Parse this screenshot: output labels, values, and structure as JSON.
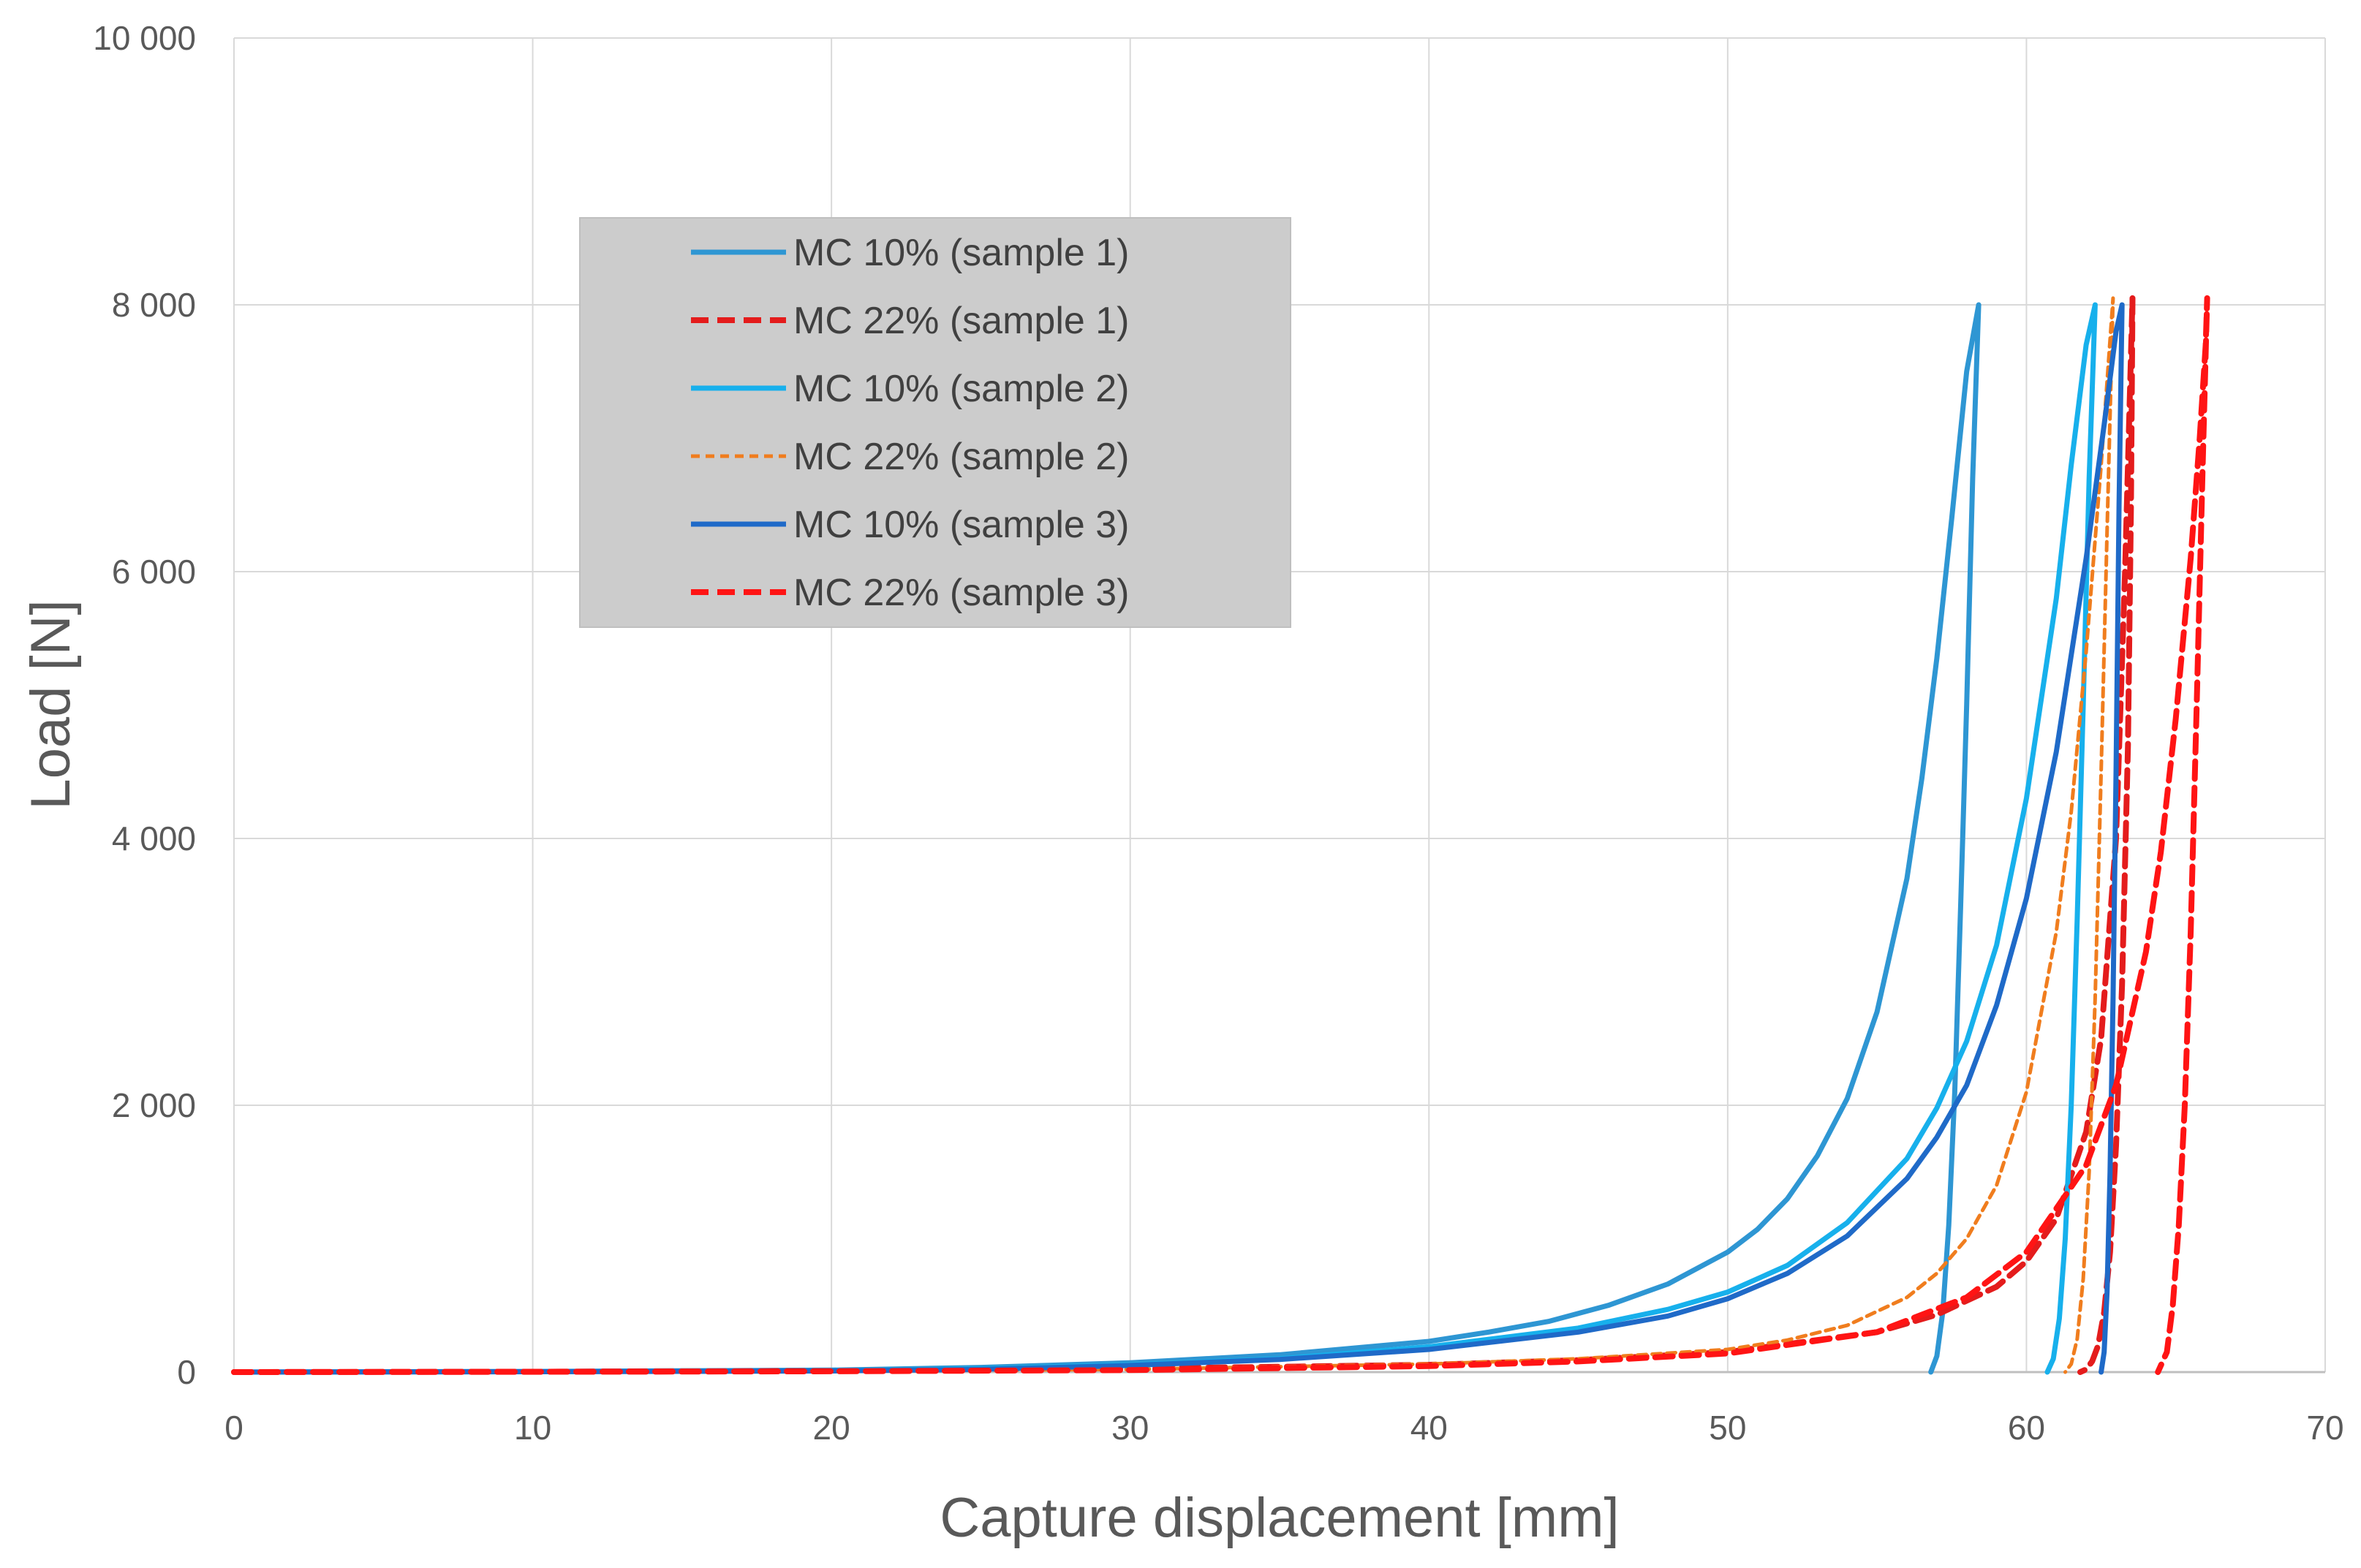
{
  "chart_data": {
    "type": "line",
    "title": "",
    "xlabel": "Capture displacement [mm]",
    "ylabel": "Load [N]",
    "xlim": [
      0,
      70
    ],
    "ylim": [
      0,
      10000
    ],
    "x_ticks": [
      0,
      10,
      20,
      30,
      40,
      50,
      60,
      70
    ],
    "x_tick_labels": [
      "0",
      "10",
      "20",
      "30",
      "40",
      "50",
      "60",
      "70"
    ],
    "y_ticks": [
      0,
      2000,
      4000,
      6000,
      8000,
      10000
    ],
    "y_tick_labels": [
      "0",
      "2 000",
      "4 000",
      "6 000",
      "8 000",
      "10 000"
    ],
    "grid": true,
    "legend_position": "upper-left-inside",
    "series": [
      {
        "name": "MC 10% (sample 1)",
        "color": "#2e96d3",
        "dash": "solid",
        "x": [
          0,
          10,
          20,
          25,
          30,
          35,
          40,
          42,
          44,
          46,
          48,
          50,
          51,
          52,
          53,
          54,
          55,
          56,
          56.5,
          57,
          57.5,
          58,
          58.4,
          58.2,
          58.0,
          57.8,
          57.6,
          57.4,
          57.2,
          57.0,
          56.8
        ],
        "y": [
          0,
          5,
          15,
          35,
          70,
          130,
          230,
          300,
          380,
          500,
          660,
          900,
          1070,
          1300,
          1620,
          2050,
          2700,
          3700,
          4450,
          5350,
          6400,
          7500,
          8000,
          6700,
          5000,
          3500,
          2100,
          1100,
          450,
          120,
          0
        ]
      },
      {
        "name": "MC 22% (sample 1)",
        "color": "#e41c1c",
        "dash": "long",
        "x": [
          0,
          10,
          20,
          30,
          40,
          45,
          50,
          55,
          57,
          59,
          60,
          61,
          62,
          62.5,
          63,
          63.3,
          63.55,
          63.5,
          63.4,
          63.2,
          63.0,
          62.8,
          62.6,
          62.4,
          62.2,
          62.0,
          61.8
        ],
        "y": [
          0,
          3,
          8,
          25,
          55,
          90,
          150,
          300,
          430,
          640,
          830,
          1150,
          1800,
          2500,
          4000,
          6000,
          8050,
          6500,
          4700,
          2900,
          1700,
          900,
          450,
          200,
          80,
          20,
          0
        ]
      },
      {
        "name": "MC 10% (sample 2)",
        "color": "#17b0ec",
        "dash": "solid",
        "x": [
          0,
          10,
          20,
          25,
          30,
          35,
          40,
          45,
          48,
          50,
          52,
          54,
          56,
          57,
          58,
          59,
          60,
          61,
          61.5,
          62,
          62.3,
          62.1,
          61.9,
          61.7,
          61.5,
          61.3,
          61.1,
          60.9,
          60.7
        ],
        "y": [
          0,
          3,
          10,
          25,
          55,
          100,
          190,
          330,
          470,
          600,
          800,
          1120,
          1600,
          1980,
          2480,
          3200,
          4300,
          5800,
          6800,
          7700,
          8000,
          6700,
          5000,
          3400,
          2000,
          1000,
          400,
          100,
          0
        ]
      },
      {
        "name": "MC 22% (sample 2)",
        "color": "#f07d1e",
        "dash": "short",
        "x": [
          0,
          10,
          20,
          30,
          40,
          45,
          50,
          52,
          54,
          56,
          57,
          58,
          59,
          60,
          61,
          61.5,
          62,
          62.5,
          62.9,
          62.7,
          62.5,
          62.3,
          62.1,
          61.9,
          61.7,
          61.5,
          61.3
        ],
        "y": [
          0,
          2,
          8,
          20,
          60,
          100,
          170,
          240,
          350,
          560,
          740,
          1000,
          1400,
          2100,
          3300,
          4200,
          5400,
          6800,
          8050,
          6300,
          4500,
          2800,
          1500,
          700,
          250,
          60,
          0
        ]
      },
      {
        "name": "MC 10% (sample 3)",
        "color": "#1f6ac8",
        "dash": "solid",
        "x": [
          0,
          10,
          20,
          25,
          30,
          35,
          40,
          45,
          48,
          50,
          52,
          54,
          56,
          57,
          58,
          59,
          60,
          61,
          62,
          62.6,
          63.0,
          63.2,
          63.1,
          63.0,
          62.9,
          62.8,
          62.7,
          62.6,
          62.5
        ],
        "y": [
          0,
          3,
          8,
          20,
          50,
          95,
          170,
          300,
          420,
          550,
          740,
          1020,
          1450,
          1760,
          2150,
          2750,
          3550,
          4650,
          6100,
          7100,
          7800,
          8000,
          6500,
          4500,
          2800,
          1500,
          600,
          150,
          0
        ]
      },
      {
        "name": "MC 22% (sample 3)",
        "color": "#ff1414",
        "dash": "long",
        "x": [
          0,
          10,
          20,
          30,
          40,
          45,
          50,
          55,
          58,
          60,
          62,
          63,
          64,
          64.5,
          65,
          65.5,
          65.8,
          66.0,
          66.05,
          65.9,
          65.7,
          65.5,
          65.3,
          65.1,
          64.9,
          64.7,
          64.4
        ],
        "y": [
          0,
          2,
          6,
          15,
          45,
          80,
          140,
          300,
          560,
          900,
          1550,
          2150,
          3150,
          3900,
          4900,
          6100,
          7000,
          7700,
          8050,
          6800,
          5000,
          3300,
          2000,
          1100,
          500,
          150,
          0
        ]
      }
    ]
  }
}
